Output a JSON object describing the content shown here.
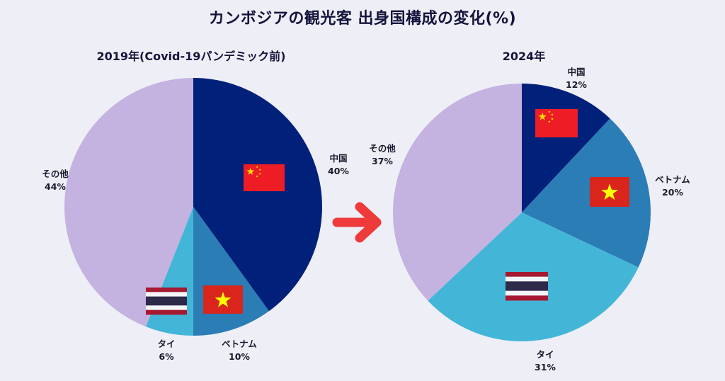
{
  "title": "カンボジアの観光客 出身国構成の変化(%)",
  "chart_data": [
    {
      "type": "pie",
      "title": "2019年(Covid-19パンデミック前)",
      "slices": [
        {
          "label": "中国",
          "value": 40,
          "value_text": "40%",
          "color": "#00207a",
          "flag": "china-flag"
        },
        {
          "label": "ベトナム",
          "value": 10,
          "value_text": "10%",
          "color": "#2b7db6",
          "flag": "vietnam-flag"
        },
        {
          "label": "タイ",
          "value": 6,
          "value_text": "6%",
          "color": "#43b6d8",
          "flag": "thailand-flag"
        },
        {
          "label": "その他",
          "value": 44,
          "value_text": "44%",
          "color": "#c4b2e0",
          "flag": ""
        }
      ]
    },
    {
      "type": "pie",
      "title": "2024年",
      "slices": [
        {
          "label": "中国",
          "value": 12,
          "value_text": "12%",
          "color": "#00207a",
          "flag": "china-flag"
        },
        {
          "label": "ベトナム",
          "value": 20,
          "value_text": "20%",
          "color": "#2b7db6",
          "flag": "vietnam-flag"
        },
        {
          "label": "タイ",
          "value": 31,
          "value_text": "31%",
          "color": "#43b6d8",
          "flag": "thailand-flag"
        },
        {
          "label": "その他",
          "value": 37,
          "value_text": "37%",
          "color": "#c4b2e0",
          "flag": ""
        }
      ]
    }
  ],
  "arrow": {
    "icon": "right-arrow-icon",
    "color": "#ee3a3a"
  }
}
